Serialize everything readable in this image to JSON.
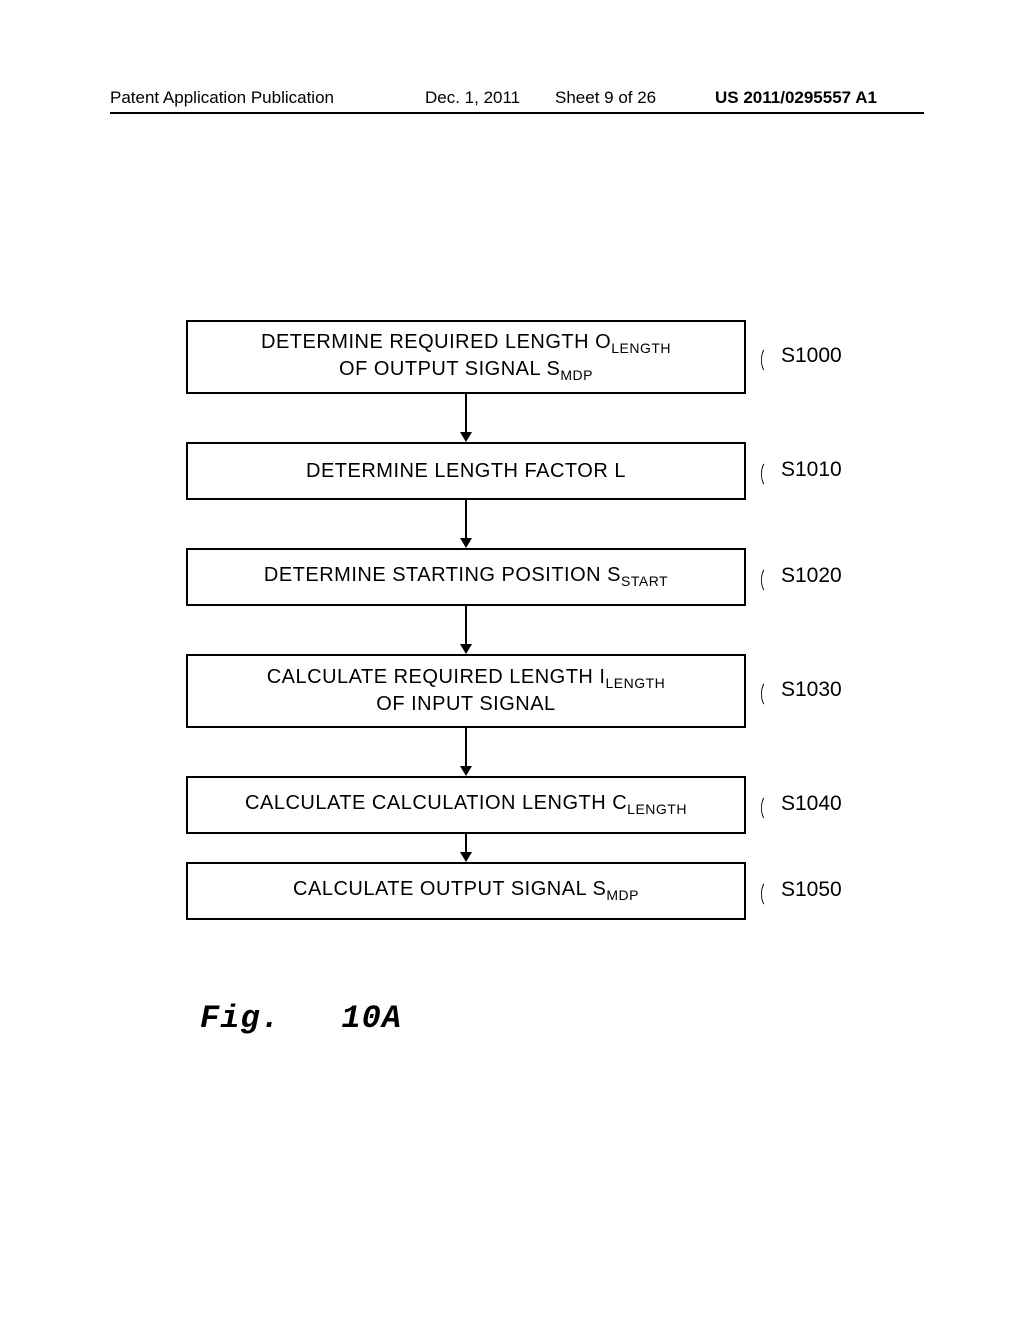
{
  "header": {
    "left": "Patent Application Publication",
    "date": "Dec. 1, 2011",
    "sheet": "Sheet 9 of 26",
    "pubnum": "US 2011/0295557 A1"
  },
  "caption": {
    "prefix": "Fig.",
    "num": "10A"
  },
  "flowchart": {
    "box_border_color": "#000000",
    "box_border_width": 2,
    "background_color": "#ffffff",
    "text_color": "#000000",
    "font_size_box": 20,
    "font_size_sub": 14,
    "font_size_label": 21,
    "arrow_length_long": 48,
    "arrow_length_short": 28,
    "steps": [
      {
        "id": "s1000",
        "lines": 2,
        "line1_pre": "DETERMINE REQUIRED LENGTH O",
        "line1_sub": "LENGTH",
        "line2_pre": "OF OUTPUT SIGNAL S",
        "line2_sub": "MDP",
        "label": "S1000",
        "arrow_after": "long"
      },
      {
        "id": "s1010",
        "lines": 1,
        "line1_pre": "DETERMINE LENGTH FACTOR L",
        "line1_sub": "",
        "label": "S1010",
        "arrow_after": "long"
      },
      {
        "id": "s1020",
        "lines": 1,
        "line1_pre": "DETERMINE STARTING POSITION S",
        "line1_sub": "START",
        "label": "S1020",
        "arrow_after": "long"
      },
      {
        "id": "s1030",
        "lines": 2,
        "line1_pre": "CALCULATE REQUIRED LENGTH I",
        "line1_sub": "LENGTH",
        "line2_pre": "OF INPUT SIGNAL",
        "line2_sub": "",
        "label": "S1030",
        "arrow_after": "long"
      },
      {
        "id": "s1040",
        "lines": 1,
        "line1_pre": "CALCULATE CALCULATION LENGTH C",
        "line1_sub": "LENGTH",
        "label": "S1040",
        "arrow_after": "short"
      },
      {
        "id": "s1050",
        "lines": 1,
        "line1_pre": "CALCULATE OUTPUT SIGNAL S",
        "line1_sub": "MDP",
        "label": "S1050",
        "arrow_after": "none"
      }
    ]
  }
}
